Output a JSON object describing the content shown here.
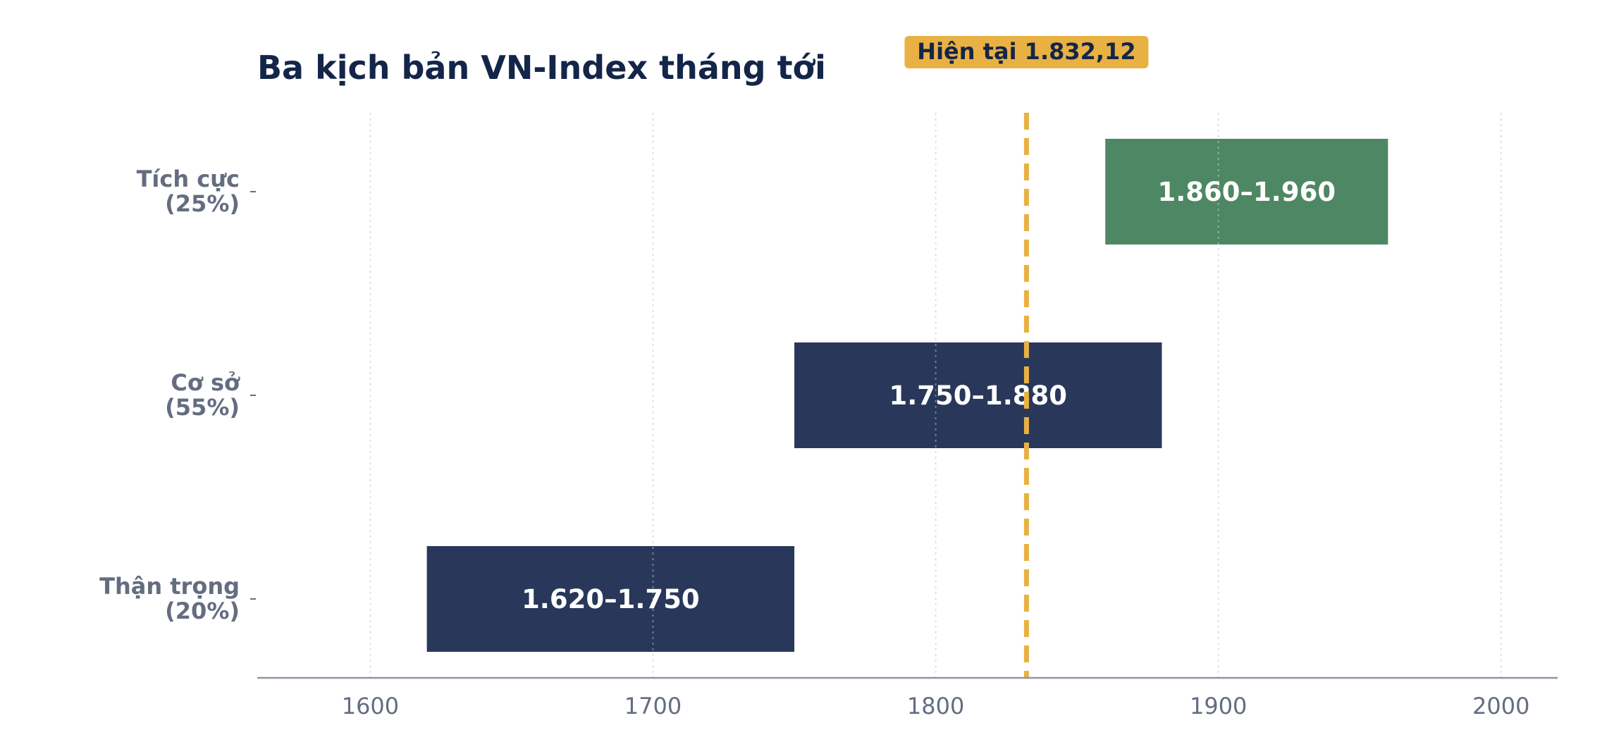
{
  "chart_data": {
    "type": "bar",
    "orientation": "horizontal-range",
    "title": "Ba kịch bản VN-Index tháng tới",
    "xlabel": "",
    "ylabel": "",
    "xlim": [
      1560,
      2020
    ],
    "xticks": [
      1600,
      1700,
      1800,
      1900,
      2000
    ],
    "grid": "vertical-dotted",
    "categories": [
      {
        "name": "Tích cực",
        "prob": "(25%)"
      },
      {
        "name": "Cơ sở",
        "prob": "(55%)"
      },
      {
        "name": "Thận trọng",
        "prob": "(20%)"
      }
    ],
    "ranges": [
      {
        "low": 1860,
        "high": 1960,
        "label": "1.860–1.960",
        "color": "#4e8763"
      },
      {
        "low": 1750,
        "high": 1880,
        "label": "1.750–1.880",
        "color": "#29375a"
      },
      {
        "low": 1620,
        "high": 1750,
        "label": "1.620–1.750",
        "color": "#29375a"
      }
    ],
    "reference": {
      "value": 1832.12,
      "label": "Hiện tại 1.832,12",
      "color": "#e9b143"
    }
  }
}
